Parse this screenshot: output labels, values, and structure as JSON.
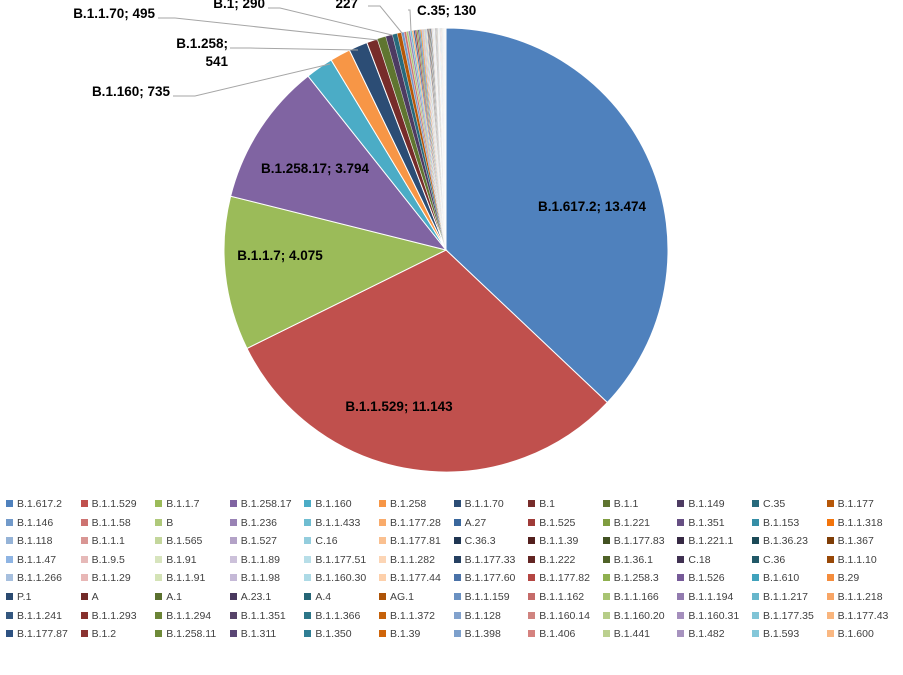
{
  "chart_data": {
    "type": "pie",
    "title": "",
    "data_labels": [
      {
        "category": "B.1.617.2",
        "value": 13474,
        "text": "B.1.617.2; 13.474",
        "lines": [
          "B.1.617.2; 13.474"
        ]
      },
      {
        "category": "B.1.1.529",
        "value": 11143,
        "text": "B.1.1.529; 11.143",
        "lines": [
          "B.1.1.529; 11.143"
        ]
      },
      {
        "category": "B.1.1.7",
        "value": 4075,
        "text": "B.1.1.7; 4.075",
        "lines": [
          "B.1.1.7; 4.075"
        ]
      },
      {
        "category": "B.1.258.17",
        "value": 3794,
        "text": "B.1.258.17; 3.794",
        "lines": [
          "B.1.258.17; 3.794"
        ]
      },
      {
        "category": "B.1.160",
        "value": 735,
        "text": "B.1.160; 735",
        "lines": [
          "B.1.160; 735"
        ]
      },
      {
        "category": "B.1.258",
        "value": 541,
        "text": "B.1.258; 541",
        "lines": [
          "B.1.258;",
          "541"
        ]
      },
      {
        "category": "B.1.1.70",
        "value": 495,
        "text": "B.1.1.70; 495",
        "lines": [
          "B.1.1.70; 495"
        ]
      },
      {
        "category": "B.1",
        "value": 290,
        "text": "B.1; 290",
        "lines": [
          "B.1; 290"
        ]
      },
      {
        "category": "B.1.1",
        "value": 227,
        "text": "227",
        "lines": [
          "227"
        ]
      },
      {
        "category": "C.35",
        "value": 130,
        "text": "C.35; 130",
        "lines": [
          "C.35; 130"
        ]
      }
    ],
    "slices": [
      {
        "label": "B.1.617.2",
        "value": 13474,
        "color": "#4F81BD"
      },
      {
        "label": "B.1.1.529",
        "value": 11143,
        "color": "#C0504D"
      },
      {
        "label": "B.1.1.7",
        "value": 4075,
        "color": "#9BBB59"
      },
      {
        "label": "B.1.258.17",
        "value": 3794,
        "color": "#8064A2"
      },
      {
        "label": "B.1.160",
        "value": 735,
        "color": "#4BACC6"
      },
      {
        "label": "B.1.258",
        "value": 541,
        "color": "#F79646"
      },
      {
        "label": "B.1.1.70",
        "value": 495,
        "color": "#2C4D75"
      },
      {
        "label": "B.1",
        "value": 290,
        "color": "#772C2A"
      },
      {
        "label": "B.1.1",
        "value": 227,
        "color": "#5F7530"
      },
      {
        "label": "B.1.149",
        "value": 180,
        "color": "#4D3B62"
      },
      {
        "label": "C.35",
        "value": 130,
        "color": "#276A7C"
      },
      {
        "label": "B.1.177",
        "value": 110,
        "color": "#B65708"
      },
      {
        "label": "B.1.146",
        "value": 70,
        "color": "#729ACA"
      },
      {
        "label": "B.1.1.58",
        "value": 60,
        "color": "#CD7371"
      },
      {
        "label": "B",
        "value": 55,
        "color": "#AFC97A"
      },
      {
        "label": "B.1.236",
        "value": 50,
        "color": "#9983B5"
      },
      {
        "label": "B.1.1.433",
        "value": 45,
        "color": "#6FBDD1"
      },
      {
        "label": "B.1.177.28",
        "value": 42,
        "color": "#F9AB6B"
      },
      {
        "label": "A.27",
        "value": 40,
        "color": "#3A679C"
      },
      {
        "label": "B.1.525",
        "value": 38,
        "color": "#9F3B38"
      },
      {
        "label": "B.1.221",
        "value": 36,
        "color": "#7F9D40"
      },
      {
        "label": "B.1.351",
        "value": 34,
        "color": "#664F83"
      },
      {
        "label": "B.1.153",
        "value": 32,
        "color": "#358EA6"
      },
      {
        "label": "B.1.1.318",
        "value": 30,
        "color": "#F3740B"
      },
      {
        "label": "B.1.118",
        "value": 28,
        "color": "#95B3D7"
      },
      {
        "label": "B.1.1.1",
        "value": 27,
        "color": "#D99694"
      },
      {
        "label": "B.1.565",
        "value": 26,
        "color": "#C3D69B"
      },
      {
        "label": "B.1.527",
        "value": 25,
        "color": "#B3A2C7"
      },
      {
        "label": "C.16",
        "value": 24,
        "color": "#93CDDD"
      },
      {
        "label": "B.1.177.81",
        "value": 23,
        "color": "#FAC090"
      },
      {
        "label": "C.36.3",
        "value": 22,
        "color": "#1F3552"
      },
      {
        "label": "B.1.1.39",
        "value": 21,
        "color": "#531F1D"
      },
      {
        "label": "B.1.177.83",
        "value": 20,
        "color": "#425122"
      },
      {
        "label": "B.1.221.1",
        "value": 19,
        "color": "#362944"
      },
      {
        "label": "B.1.36.23",
        "value": 18,
        "color": "#1B4A57"
      },
      {
        "label": "B.1.367",
        "value": 17,
        "color": "#7F3D06"
      },
      {
        "label": "B.1.1.47",
        "value": 16,
        "color": "#8EB4E3"
      },
      {
        "label": "B.1.9.5",
        "value": 15,
        "color": "#E6B9B8"
      },
      {
        "label": "B.1.91",
        "value": 15,
        "color": "#D7E4BD"
      },
      {
        "label": "B.1.1.89",
        "value": 14,
        "color": "#CCC1DA"
      },
      {
        "label": "B.1.177.51",
        "value": 14,
        "color": "#B7DEE8"
      },
      {
        "label": "B.1.1.282",
        "value": 13,
        "color": "#FCD5B5"
      },
      {
        "label": "B.1.177.33",
        "value": 13,
        "color": "#254061"
      },
      {
        "label": "B.1.222",
        "value": 12,
        "color": "#632523"
      },
      {
        "label": "B.1.36.1",
        "value": 12,
        "color": "#4F6228"
      },
      {
        "label": "C.18",
        "value": 11,
        "color": "#403152"
      },
      {
        "label": "C.36",
        "value": 11,
        "color": "#215968"
      },
      {
        "label": "B.1.1.10",
        "value": 10,
        "color": "#984807"
      },
      {
        "label": "B.1.1.266",
        "value": 10,
        "color": "#A6BFDE"
      },
      {
        "label": "B.1.1.29",
        "value": 9,
        "color": "#E8B7B6"
      },
      {
        "label": "B.1.1.91",
        "value": 9,
        "color": "#D4E3B6"
      },
      {
        "label": "B.1.1.98",
        "value": 9,
        "color": "#C5B9D7"
      },
      {
        "label": "B.1.160.30",
        "value": 8,
        "color": "#ADDAE6"
      },
      {
        "label": "B.1.177.44",
        "value": 8,
        "color": "#FDD0AB"
      },
      {
        "label": "B.1.177.60",
        "value": 8,
        "color": "#4A72A8"
      },
      {
        "label": "B.1.177.82",
        "value": 7,
        "color": "#B44642"
      },
      {
        "label": "B.1.258.3",
        "value": 7,
        "color": "#8FB04F"
      },
      {
        "label": "B.1.526",
        "value": 7,
        "color": "#765A98"
      },
      {
        "label": "B.1.610",
        "value": 7,
        "color": "#40A2BC"
      },
      {
        "label": "B.29",
        "value": 6,
        "color": "#F48C3C"
      },
      {
        "label": "P.1",
        "value": 6,
        "color": "#2A4A70"
      },
      {
        "label": "A",
        "value": 6,
        "color": "#722A28"
      },
      {
        "label": "A.1",
        "value": 5,
        "color": "#5A702E"
      },
      {
        "label": "A.23.1",
        "value": 5,
        "color": "#49385E"
      },
      {
        "label": "A.4",
        "value": 5,
        "color": "#256576"
      },
      {
        "label": "AG.1",
        "value": 5,
        "color": "#AD5307"
      },
      {
        "label": "B.1.1.159",
        "value": 5,
        "color": "#6A91C2"
      },
      {
        "label": "B.1.1.162",
        "value": 5,
        "color": "#C56B69"
      },
      {
        "label": "B.1.1.166",
        "value": 4,
        "color": "#A8C472"
      },
      {
        "label": "B.1.1.194",
        "value": 4,
        "color": "#927BAF"
      },
      {
        "label": "B.1.1.217",
        "value": 4,
        "color": "#67B6CB"
      },
      {
        "label": "B.1.1.218",
        "value": 4,
        "color": "#F8A565"
      },
      {
        "label": "B.1.1.241",
        "value": 4,
        "color": "#34577F"
      },
      {
        "label": "B.1.1.293",
        "value": 4,
        "color": "#87302D"
      },
      {
        "label": "B.1.1.294",
        "value": 3,
        "color": "#6B8436"
      },
      {
        "label": "B.1.1.351",
        "value": 3,
        "color": "#574369"
      },
      {
        "label": "B.1.1.366",
        "value": 3,
        "color": "#2C7688"
      },
      {
        "label": "B.1.1.372",
        "value": 3,
        "color": "#C5610A"
      },
      {
        "label": "B.1.128",
        "value": 3,
        "color": "#82A2CD"
      },
      {
        "label": "B.1.160.14",
        "value": 3,
        "color": "#D08480"
      },
      {
        "label": "B.1.160.20",
        "value": 3,
        "color": "#B6CD88"
      },
      {
        "label": "B.1.160.31",
        "value": 3,
        "color": "#A58FBD"
      },
      {
        "label": "B.1.177.35",
        "value": 3,
        "color": "#80C4D6"
      },
      {
        "label": "B.1.177.43",
        "value": 3,
        "color": "#F9B57D"
      },
      {
        "label": "B.1.177.87",
        "value": 2,
        "color": "#2E5282"
      },
      {
        "label": "B.1.2",
        "value": 2,
        "color": "#8A3331"
      },
      {
        "label": "B.1.258.11",
        "value": 2,
        "color": "#6E8A38"
      },
      {
        "label": "B.1.311",
        "value": 2,
        "color": "#5A4675"
      },
      {
        "label": "B.1.350",
        "value": 2,
        "color": "#2F7E94"
      },
      {
        "label": "B.1.39",
        "value": 2,
        "color": "#D0650A"
      },
      {
        "label": "B.1.398",
        "value": 2,
        "color": "#7DA0CC"
      },
      {
        "label": "B.1.406",
        "value": 2,
        "color": "#D5827F"
      },
      {
        "label": "B.1.441",
        "value": 2,
        "color": "#BBD08F"
      },
      {
        "label": "B.1.482",
        "value": 2,
        "color": "#A793BF"
      },
      {
        "label": "B.1.593",
        "value": 2,
        "color": "#84C7D9"
      },
      {
        "label": "B.1.600",
        "value": 2,
        "color": "#FAB882"
      }
    ]
  }
}
